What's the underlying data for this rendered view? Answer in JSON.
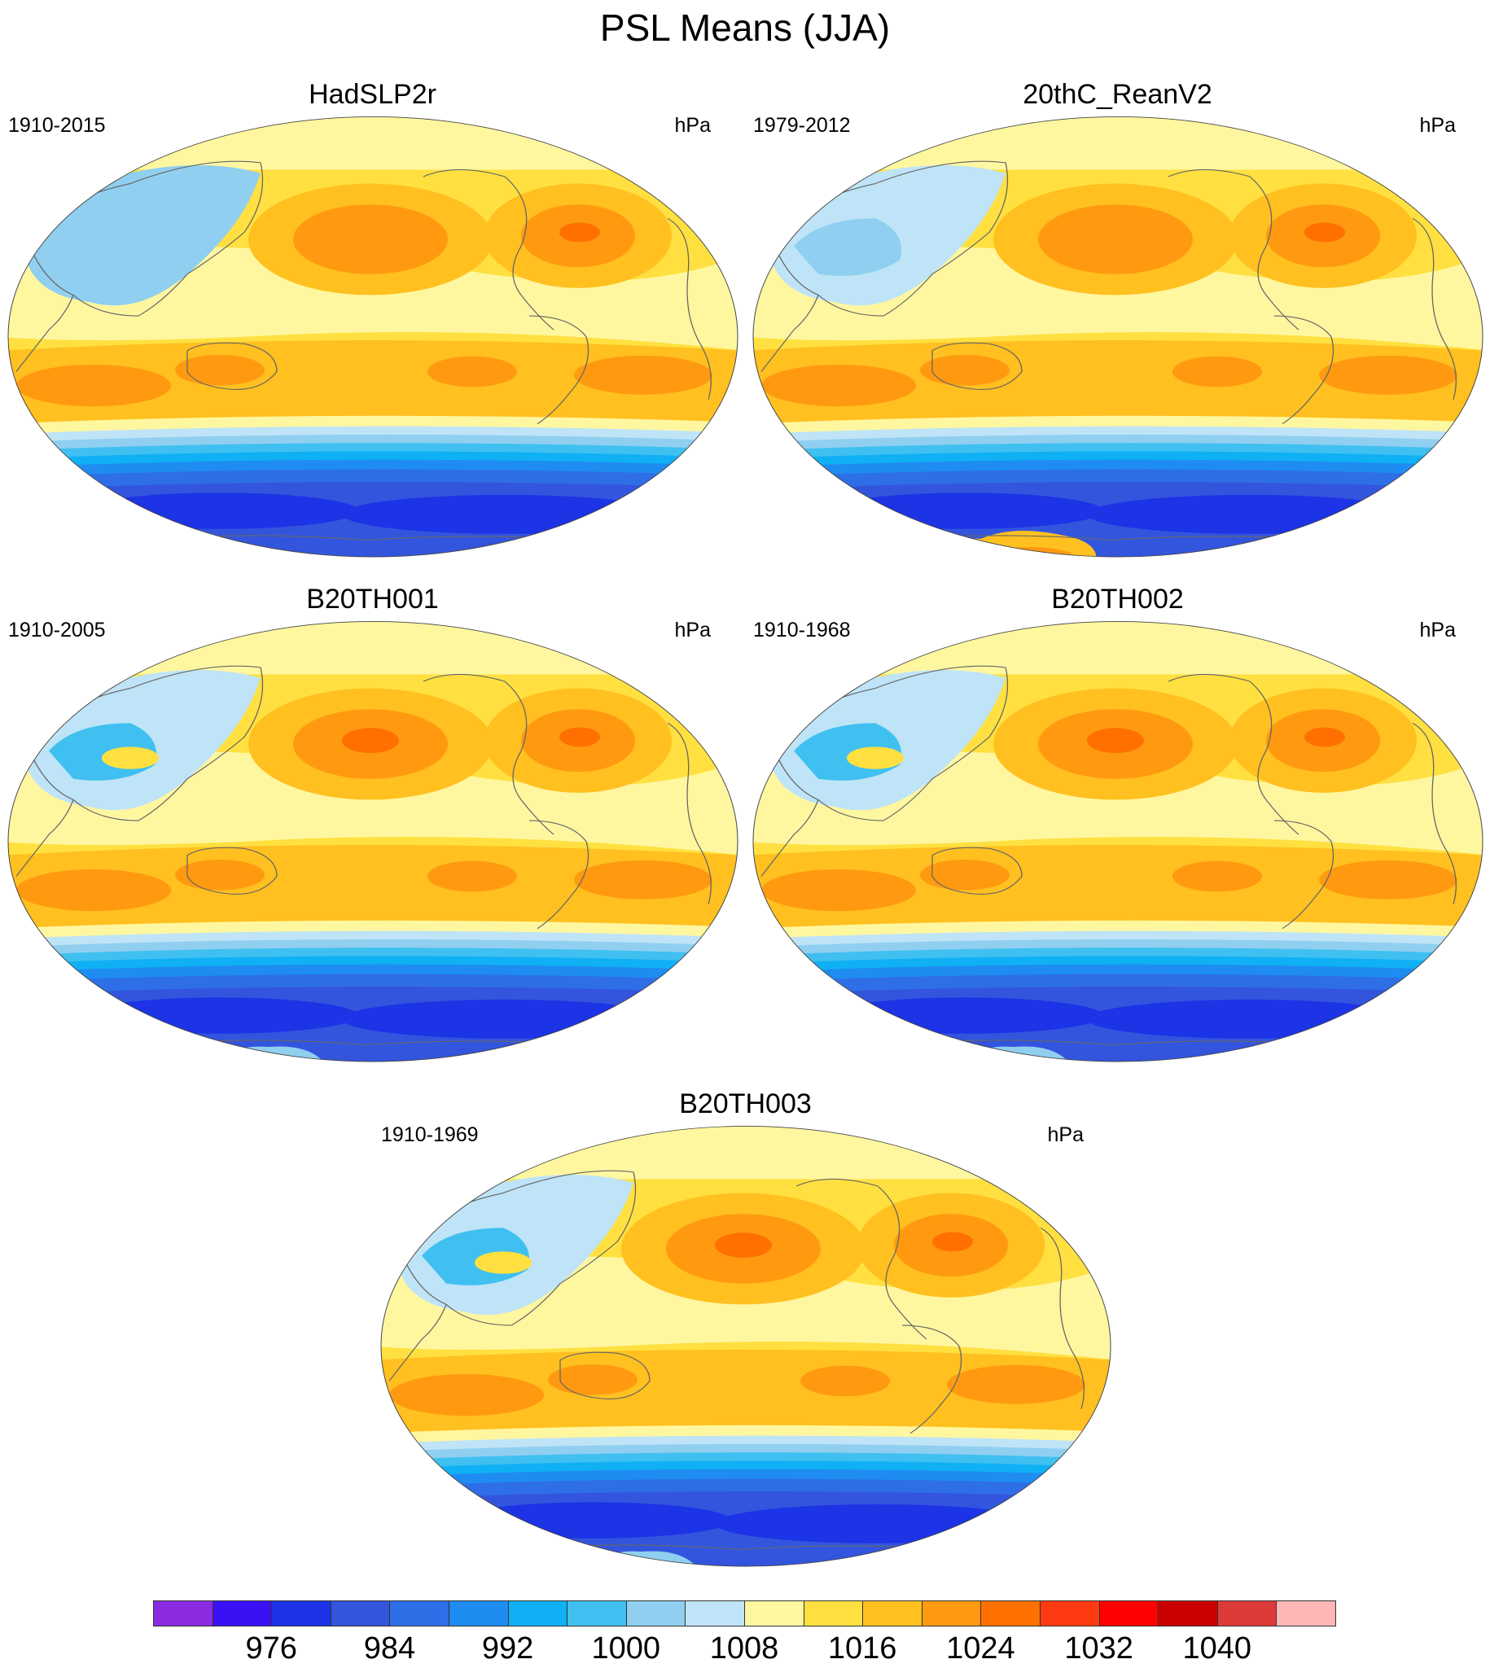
{
  "title": "PSL Means (JJA)",
  "panels": [
    {
      "name": "HadSLP2r",
      "years": "1910-2015",
      "units": "hPa",
      "variant": "obs"
    },
    {
      "name": "20thC_ReanV2",
      "years": "1979-2012",
      "units": "hPa",
      "variant": "rean"
    },
    {
      "name": "B20TH001",
      "years": "1910-2005",
      "units": "hPa",
      "variant": "model"
    },
    {
      "name": "B20TH002",
      "years": "1910-1968",
      "units": "hPa",
      "variant": "model"
    },
    {
      "name": "B20TH003",
      "years": "1910-1969",
      "units": "hPa",
      "variant": "model"
    }
  ],
  "colorbar": {
    "labels": [
      "976",
      "984",
      "992",
      "1000",
      "1008",
      "1016",
      "1024",
      "1032",
      "1040"
    ],
    "colors": [
      "#8a2be2",
      "#3b10f5",
      "#1c33e6",
      "#3355dd",
      "#2e6ee6",
      "#1e8cf0",
      "#10b0f5",
      "#40c0f0",
      "#90cff0",
      "#bfe4f7",
      "#fff7a0",
      "#ffe040",
      "#ffc020",
      "#ff9a10",
      "#ff7000",
      "#ff3a10",
      "#ff0000",
      "#cc0000",
      "#dd3a3a",
      "#ffb6b6"
    ]
  }
}
